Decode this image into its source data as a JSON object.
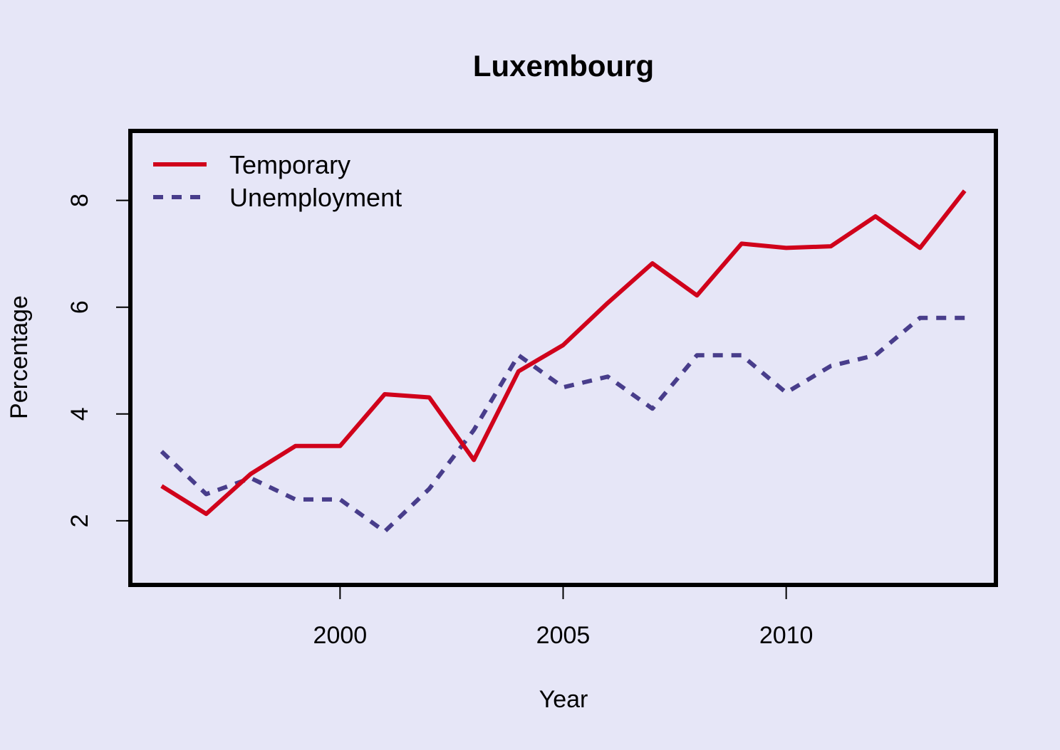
{
  "chart_data": {
    "type": "line",
    "title": "Luxembourg",
    "xlabel": "Year",
    "ylabel": "Percentage",
    "xlim": [
      1995.3,
      2014.7
    ],
    "ylim": [
      0.8,
      9.3
    ],
    "x_ticks": [
      2000,
      2005,
      2010
    ],
    "y_ticks": [
      2,
      4,
      6,
      8
    ],
    "grid": false,
    "legend_position": "top-left",
    "x": [
      1996,
      1997,
      1998,
      1999,
      2000,
      2001,
      2002,
      2003,
      2004,
      2005,
      2006,
      2007,
      2008,
      2009,
      2010,
      2011,
      2012,
      2013,
      2014
    ],
    "series": [
      {
        "name": "Temporary",
        "color": "#D0021B",
        "style": "solid",
        "values": [
          2.65,
          2.13,
          2.88,
          3.4,
          3.4,
          4.37,
          4.31,
          3.14,
          4.8,
          5.29,
          6.08,
          6.82,
          6.22,
          7.19,
          7.11,
          7.14,
          7.7,
          7.11,
          8.18
        ]
      },
      {
        "name": "Unemployment",
        "color": "#483D8B",
        "style": "dashed",
        "values": [
          3.3,
          2.5,
          2.8,
          2.4,
          2.4,
          1.8,
          2.6,
          3.7,
          5.1,
          4.5,
          4.7,
          4.1,
          5.1,
          5.1,
          4.4,
          4.9,
          5.1,
          5.8,
          5.8
        ]
      }
    ]
  }
}
